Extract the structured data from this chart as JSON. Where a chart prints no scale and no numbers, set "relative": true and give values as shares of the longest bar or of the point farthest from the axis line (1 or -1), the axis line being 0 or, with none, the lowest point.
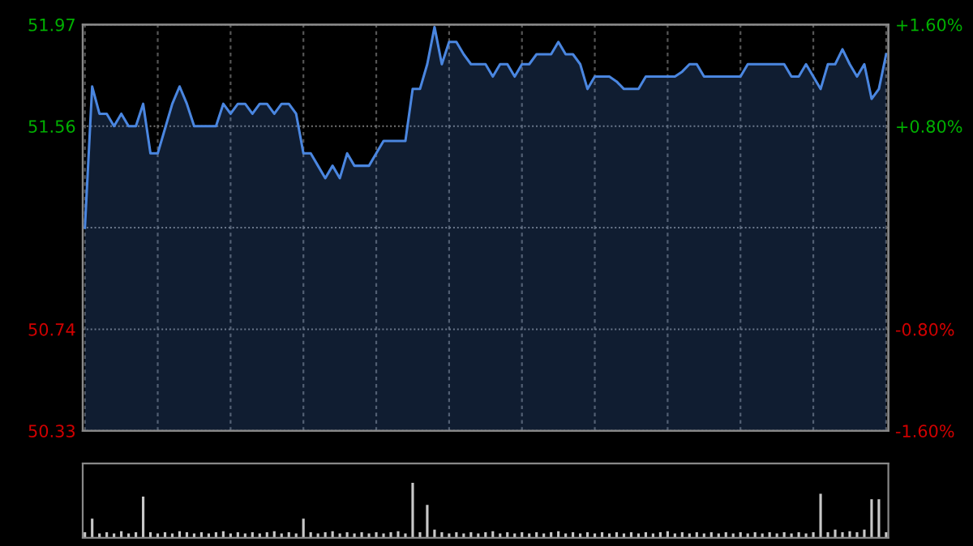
{
  "chart_data": [
    {
      "type": "area",
      "categories": [
        null,
        null,
        null,
        null,
        null,
        null,
        null,
        null,
        null,
        null,
        null,
        null,
        null,
        null,
        null,
        null,
        null,
        null,
        null,
        null,
        null,
        null,
        null,
        null,
        null,
        null,
        null,
        null,
        null,
        null,
        null,
        null,
        null,
        null,
        null,
        null,
        null,
        null,
        null,
        null,
        null,
        null,
        null,
        null,
        null,
        null,
        null,
        null,
        null,
        null,
        null,
        null,
        null,
        null,
        null,
        null,
        null,
        null,
        null,
        null,
        null,
        null,
        null,
        null,
        null,
        null,
        null,
        null,
        null,
        null,
        null,
        null,
        null,
        null,
        null,
        null,
        null,
        null,
        null,
        null,
        null,
        null,
        null,
        null,
        null,
        null,
        null,
        null,
        null,
        null,
        null,
        null,
        null,
        null,
        null,
        null,
        null,
        null,
        null,
        null,
        null,
        null,
        null,
        null,
        null,
        null,
        null,
        null,
        null,
        null,
        null
      ],
      "series": [
        {
          "color": "#4a86e0",
          "values": [
            51.15,
            51.72,
            51.61,
            51.61,
            51.56,
            51.61,
            51.56,
            51.56,
            51.65,
            51.45,
            51.45,
            51.55,
            51.65,
            51.72,
            51.65,
            51.56,
            51.56,
            51.56,
            51.56,
            51.65,
            51.61,
            51.65,
            51.65,
            51.61,
            51.65,
            51.65,
            51.61,
            51.65,
            51.65,
            51.61,
            51.45,
            51.45,
            51.4,
            51.35,
            51.4,
            51.35,
            51.45,
            51.4,
            51.4,
            51.4,
            51.45,
            51.5,
            51.5,
            51.5,
            51.5,
            51.71,
            51.71,
            51.81,
            51.96,
            51.81,
            51.9,
            51.9,
            51.85,
            51.81,
            51.81,
            51.81,
            51.76,
            51.81,
            51.81,
            51.76,
            51.81,
            51.81,
            51.85,
            51.85,
            51.85,
            51.9,
            51.85,
            51.85,
            51.81,
            51.71,
            51.76,
            51.76,
            51.76,
            51.74,
            51.71,
            51.71,
            51.71,
            51.76,
            51.76,
            51.76,
            51.76,
            51.76,
            51.78,
            51.81,
            51.81,
            51.76,
            51.76,
            51.76,
            51.76,
            51.76,
            51.76,
            51.81,
            51.81,
            51.81,
            51.81,
            51.81,
            51.81,
            51.76,
            51.76,
            51.81,
            51.76,
            51.71,
            51.81,
            51.81,
            51.87,
            51.81,
            51.76,
            51.81,
            51.67,
            51.71,
            51.85
          ]
        }
      ],
      "ylim": [
        50.33,
        51.97
      ],
      "yticks": [
        50.33,
        50.74,
        {
          "value": 51.15,
          "label": null
        },
        51.56,
        51.97
      ],
      "y2lim": [
        -1.6,
        1.6
      ],
      "y2ticks": [
        {
          "value": -1.6,
          "label": "-1.60%"
        },
        {
          "value": -0.8,
          "label": "-0.80%"
        },
        {
          "value": 0,
          "label": null
        },
        {
          "value": 0.8,
          "label": "+0.80%"
        },
        {
          "value": 1.6,
          "label": "+1.60%"
        }
      ],
      "grid": true,
      "legend": false
    },
    {
      "type": "bar",
      "relative": true,
      "categories": [
        null,
        null,
        null,
        null,
        null,
        null,
        null,
        null,
        null,
        null,
        null,
        null,
        null,
        null,
        null,
        null,
        null,
        null,
        null,
        null,
        null,
        null,
        null,
        null,
        null,
        null,
        null,
        null,
        null,
        null,
        null,
        null,
        null,
        null,
        null,
        null,
        null,
        null,
        null,
        null,
        null,
        null,
        null,
        null,
        null,
        null,
        null,
        null,
        null,
        null,
        null,
        null,
        null,
        null,
        null,
        null,
        null,
        null,
        null,
        null,
        null,
        null,
        null,
        null,
        null,
        null,
        null,
        null,
        null,
        null,
        null,
        null,
        null,
        null,
        null,
        null,
        null,
        null,
        null,
        null,
        null,
        null,
        null,
        null,
        null,
        null,
        null,
        null,
        null,
        null,
        null,
        null,
        null,
        null,
        null,
        null,
        null,
        null,
        null,
        null,
        null,
        null,
        null,
        null,
        null,
        null,
        null,
        null,
        null,
        null,
        null
      ],
      "series": [
        {
          "color": "#c8c8c8",
          "values": [
            0.1,
            0.35,
            0.08,
            0.1,
            0.08,
            0.12,
            0.08,
            0.1,
            0.75,
            0.1,
            0.08,
            0.1,
            0.08,
            0.12,
            0.1,
            0.08,
            0.1,
            0.08,
            0.1,
            0.12,
            0.08,
            0.1,
            0.08,
            0.1,
            0.08,
            0.1,
            0.12,
            0.08,
            0.1,
            0.08,
            0.35,
            0.1,
            0.08,
            0.1,
            0.12,
            0.08,
            0.1,
            0.08,
            0.1,
            0.08,
            0.1,
            0.08,
            0.1,
            0.12,
            0.08,
            1.0,
            0.1,
            0.6,
            0.15,
            0.1,
            0.08,
            0.1,
            0.08,
            0.1,
            0.08,
            0.1,
            0.12,
            0.08,
            0.1,
            0.08,
            0.1,
            0.08,
            0.1,
            0.08,
            0.1,
            0.12,
            0.08,
            0.1,
            0.08,
            0.1,
            0.08,
            0.1,
            0.08,
            0.1,
            0.08,
            0.1,
            0.08,
            0.1,
            0.08,
            0.1,
            0.12,
            0.08,
            0.1,
            0.08,
            0.1,
            0.08,
            0.1,
            0.08,
            0.1,
            0.08,
            0.1,
            0.08,
            0.1,
            0.08,
            0.1,
            0.08,
            0.1,
            0.08,
            0.1,
            0.08,
            0.1,
            0.8,
            0.1,
            0.15,
            0.1,
            0.12,
            0.1,
            0.15,
            0.7,
            0.7,
            0.1
          ]
        }
      ],
      "legend": false
    }
  ]
}
